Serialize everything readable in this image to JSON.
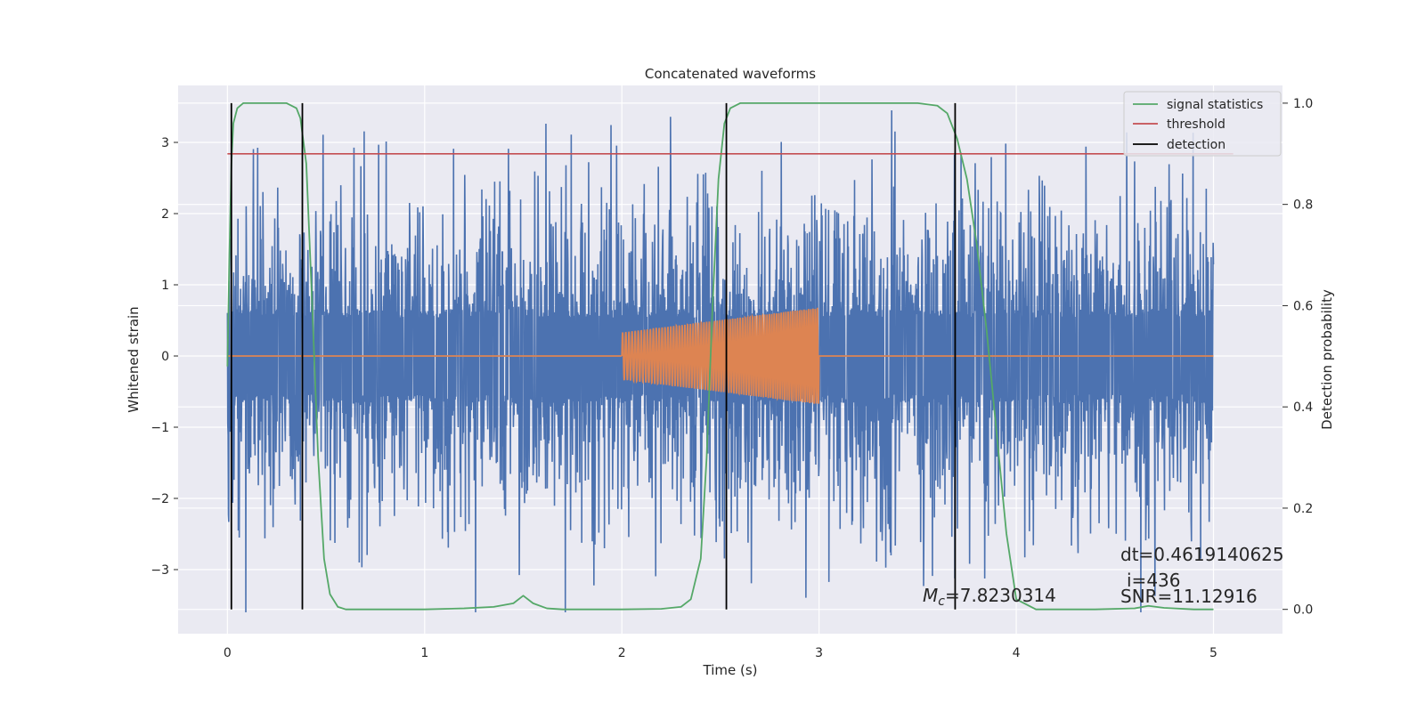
{
  "chart_data": {
    "type": "line",
    "title": "Concatenated waveforms",
    "xlabel": "Time (s)",
    "ylabel": "Whitened strain",
    "y2label": "Detection probability",
    "xlim": [
      -0.25,
      5.35
    ],
    "ylim": [
      -3.9,
      3.8
    ],
    "y2lim": [
      -0.048,
      1.035
    ],
    "xticks": [
      0,
      1,
      2,
      3,
      4,
      5
    ],
    "yticks": [
      -3,
      -2,
      -1,
      0,
      1,
      2,
      3
    ],
    "y2ticks": [
      0.0,
      0.2,
      0.4,
      0.6,
      0.8,
      1.0
    ],
    "xtick_labels": [
      "0",
      "1",
      "2",
      "3",
      "4",
      "5"
    ],
    "ytick_labels": [
      "−3",
      "−2",
      "−1",
      "0",
      "1",
      "2",
      "3"
    ],
    "y2tick_labels": [
      "0.0",
      "0.2",
      "0.4",
      "0.6",
      "0.8",
      "1.0"
    ],
    "grid": true,
    "legend_position": "top-right",
    "colors": {
      "noise": "#4c72b0",
      "signal": "#dd8452",
      "statistics": "#55a868",
      "threshold": "#c44e52",
      "detection": "#000000",
      "plot_bg": "#eaeaf2",
      "grid": "#ffffff"
    },
    "series": [
      {
        "role": "whitened-noise",
        "axis": "left",
        "t_range": [
          0,
          5
        ],
        "amplitude_core": 0.6,
        "amplitude_peak": [
          -3.6,
          3.45
        ]
      },
      {
        "role": "injected-waveform",
        "axis": "left",
        "t_range": [
          0,
          5
        ],
        "chirp_range": [
          2.0,
          3.0
        ],
        "amplitude_start": 0.33,
        "amplitude_end": 0.68
      },
      {
        "name": "signal statistics",
        "axis": "right",
        "x": [
          0,
          0.01,
          0.02,
          0.03,
          0.05,
          0.08,
          0.12,
          0.2,
          0.3,
          0.35,
          0.37,
          0.4,
          0.43,
          0.46,
          0.49,
          0.52,
          0.56,
          0.6,
          0.8,
          1.0,
          1.2,
          1.35,
          1.45,
          1.5,
          1.55,
          1.62,
          1.7,
          2.0,
          2.2,
          2.3,
          2.35,
          2.4,
          2.43,
          2.46,
          2.49,
          2.52,
          2.55,
          2.6,
          2.8,
          3.2,
          3.5,
          3.6,
          3.65,
          3.7,
          3.75,
          3.8,
          3.85,
          3.9,
          3.95,
          4.0,
          4.1,
          4.4,
          4.6,
          4.67,
          4.75,
          4.9,
          5.0
        ],
        "values": [
          0.48,
          0.7,
          0.88,
          0.96,
          0.99,
          1.0,
          1.0,
          1.0,
          1.0,
          0.99,
          0.97,
          0.88,
          0.6,
          0.3,
          0.1,
          0.03,
          0.005,
          0.0,
          0.0,
          0.0,
          0.002,
          0.005,
          0.012,
          0.027,
          0.012,
          0.002,
          0.0,
          0.0,
          0.001,
          0.005,
          0.02,
          0.1,
          0.3,
          0.6,
          0.85,
          0.96,
          0.99,
          1.0,
          1.0,
          1.0,
          1.0,
          0.995,
          0.98,
          0.93,
          0.85,
          0.72,
          0.55,
          0.35,
          0.15,
          0.02,
          0.0,
          0.0,
          0.002,
          0.007,
          0.003,
          0.0,
          0.0
        ]
      },
      {
        "name": "threshold",
        "axis": "right",
        "x": [
          0,
          5.1
        ],
        "values": [
          0.9,
          0.9
        ]
      },
      {
        "name": "detection",
        "axis": "right",
        "x": [
          0.02,
          0.38,
          2.53,
          3.69
        ],
        "span": [
          0.0,
          1.0
        ]
      }
    ],
    "legend": [
      "signal statistics",
      "threshold",
      "detection"
    ],
    "annotations": {
      "mc": "M",
      "mc_sub": "c",
      "mc_value": "=7.8230314",
      "dt": "dt=0.4619140625",
      "i": "i=436",
      "snr": "SNR=11.12916"
    }
  }
}
